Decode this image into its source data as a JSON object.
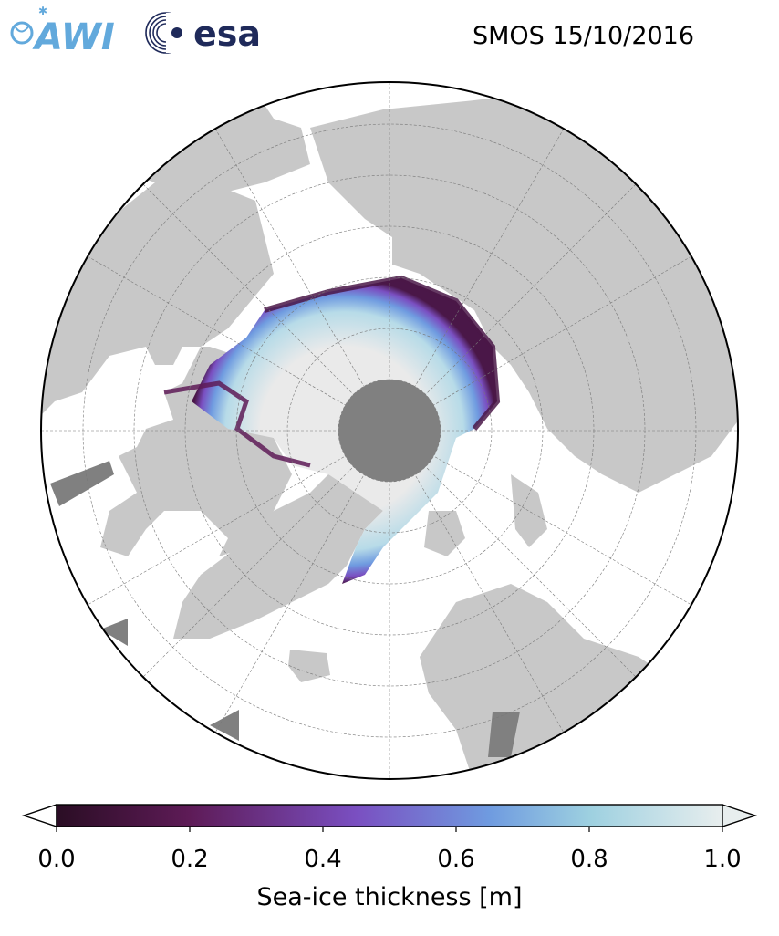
{
  "header": {
    "title": "SMOS 15/10/2016",
    "logos": [
      {
        "name": "awi-logo",
        "text": "AWI",
        "color": "#62a9dc"
      },
      {
        "name": "esa-logo",
        "text": "esa",
        "color": "#1f2a5a"
      }
    ]
  },
  "map": {
    "projection": "north-polar-stereographic",
    "pole_hole_color": "#808080",
    "land_color": "#c8c8c8",
    "ocean_color": "#ffffff",
    "low_ice_color": "#eaeaea"
  },
  "colorbar": {
    "label": "Sea-ice thickness [m]",
    "min": 0.0,
    "max": 1.0,
    "extend": "both",
    "ticks": [
      "0.0",
      "0.2",
      "0.4",
      "0.6",
      "0.8",
      "1.0"
    ],
    "colormap_stops": [
      "#2a0d24",
      "#5e1b57",
      "#7a4fc1",
      "#6f9be0",
      "#9dd0e0",
      "#e8eeee"
    ]
  }
}
